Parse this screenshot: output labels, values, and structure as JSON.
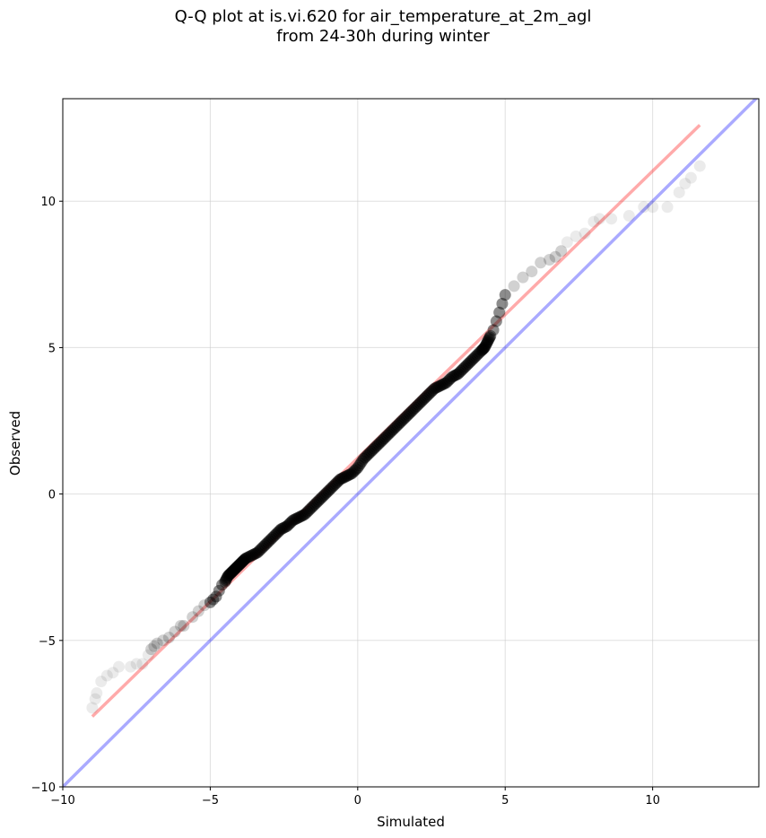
{
  "chart_data": {
    "type": "scatter",
    "title_line1": "Q-Q plot at is.vi.620 for air_temperature_at_2m_agl",
    "title_line2": "from 24-30h during winter",
    "xlabel": "Simulated",
    "ylabel": "Observed",
    "xlim": [
      -10,
      13.6
    ],
    "ylim": [
      -10,
      13.5
    ],
    "xticks": [
      -10,
      -5,
      0,
      5,
      10
    ],
    "yticks": [
      -10,
      -5,
      0,
      5,
      10
    ],
    "xtick_labels": [
      "−10",
      "−5",
      "0",
      "5",
      "10"
    ],
    "ytick_labels": [
      "−10",
      "−5",
      "0",
      "5",
      "10"
    ],
    "grid": true,
    "colors": {
      "points": "#000000",
      "fit_line": "#ff0000",
      "identity_line": "#0000ff",
      "grid": "#cccccc"
    },
    "reference_lines": [
      {
        "kind": "identity",
        "x": [
          -10,
          13.6
        ],
        "y": [
          -10,
          13.6
        ]
      },
      {
        "kind": "fit",
        "x": [
          -9.0,
          11.6
        ],
        "y": [
          -7.6,
          12.6
        ]
      }
    ],
    "series": [
      {
        "x": [
          -9.0,
          -8.9,
          -8.85,
          -8.7,
          -8.5,
          -8.3,
          -8.1,
          -7.7,
          -7.5,
          -7.3,
          -7.1,
          -7.0,
          -6.9,
          -6.8,
          -6.6,
          -6.4,
          -6.2,
          -6.0,
          -5.9,
          -5.6,
          -5.4,
          -5.2,
          -5.0,
          -4.9,
          -4.8,
          -4.7,
          -4.6,
          -4.5,
          -4.4,
          -4.3,
          -4.2,
          -4.1,
          -4.0,
          -3.9,
          -3.8,
          -3.6,
          -3.4,
          -3.2,
          -3.0,
          -2.8,
          -2.6,
          -2.4,
          -2.2,
          -2.0,
          -1.8,
          -1.6,
          -1.4,
          -1.2,
          -1.0,
          -0.8,
          -0.6,
          -0.4,
          -0.2,
          0.0,
          0.2,
          0.4,
          0.6,
          0.8,
          1.0,
          1.2,
          1.4,
          1.6,
          1.8,
          2.0,
          2.2,
          2.4,
          2.6,
          2.8,
          3.0,
          3.2,
          3.4,
          3.6,
          3.8,
          4.0,
          4.2,
          4.3,
          4.4,
          4.5,
          4.6,
          4.7,
          4.8,
          4.9,
          5.0,
          5.3,
          5.6,
          5.9,
          6.2,
          6.5,
          6.7,
          6.9,
          7.1,
          7.4,
          7.7,
          8.0,
          8.2,
          8.6,
          9.2,
          9.7,
          10.0,
          10.5,
          10.9,
          11.1,
          11.3,
          11.6
        ],
        "y": [
          -7.3,
          -7.0,
          -6.8,
          -6.4,
          -6.2,
          -6.1,
          -5.9,
          -5.9,
          -5.8,
          -5.8,
          -5.5,
          -5.3,
          -5.2,
          -5.1,
          -5.0,
          -4.9,
          -4.7,
          -4.5,
          -4.5,
          -4.2,
          -4.0,
          -3.8,
          -3.7,
          -3.6,
          -3.5,
          -3.3,
          -3.1,
          -3.0,
          -2.8,
          -2.7,
          -2.6,
          -2.5,
          -2.4,
          -2.3,
          -2.2,
          -2.1,
          -2.0,
          -1.8,
          -1.6,
          -1.4,
          -1.2,
          -1.1,
          -0.9,
          -0.8,
          -0.7,
          -0.5,
          -0.3,
          -0.1,
          0.1,
          0.3,
          0.5,
          0.6,
          0.7,
          0.9,
          1.2,
          1.4,
          1.6,
          1.8,
          2.0,
          2.2,
          2.4,
          2.6,
          2.8,
          3.0,
          3.2,
          3.4,
          3.6,
          3.7,
          3.8,
          4.0,
          4.1,
          4.3,
          4.5,
          4.7,
          4.9,
          5.0,
          5.2,
          5.4,
          5.6,
          5.9,
          6.2,
          6.5,
          6.8,
          7.1,
          7.4,
          7.6,
          7.9,
          8.0,
          8.1,
          8.3,
          8.6,
          8.8,
          8.9,
          9.3,
          9.4,
          9.4,
          9.5,
          9.8,
          9.8,
          9.8,
          10.3,
          10.6,
          10.8,
          11.2
        ]
      }
    ]
  }
}
